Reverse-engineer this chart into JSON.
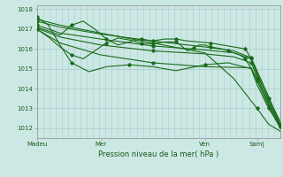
{
  "bg_color": "#cce8e4",
  "grid_color": "#aacccc",
  "line_color": "#1a6b1a",
  "marker_color": "#1a6b1a",
  "xlabel": "Pression niveau de la mer( hPa )",
  "xtick_labels": [
    "Madeu",
    "Mer",
    "Ven",
    "Sam|"
  ],
  "xtick_positions": [
    0,
    55,
    145,
    190
  ],
  "ylim": [
    1011.5,
    1018.2
  ],
  "yticks": [
    1012,
    1013,
    1014,
    1015,
    1016,
    1017,
    1018
  ],
  "figsize": [
    3.2,
    2.0
  ],
  "dpi": 100,
  "series": [
    {
      "name": "s1_diagonal",
      "points": [
        [
          0,
          1017.5
        ],
        [
          20,
          1017.2
        ],
        [
          55,
          1016.8
        ],
        [
          100,
          1016.3
        ],
        [
          145,
          1015.8
        ],
        [
          170,
          1014.5
        ],
        [
          190,
          1013.0
        ],
        [
          200,
          1012.2
        ],
        [
          210,
          1011.85
        ]
      ]
    },
    {
      "name": "s2_diagonal_steep",
      "points": [
        [
          0,
          1017.6
        ],
        [
          10,
          1017.2
        ],
        [
          20,
          1016.2
        ],
        [
          30,
          1015.3
        ],
        [
          45,
          1014.85
        ],
        [
          60,
          1015.1
        ],
        [
          80,
          1015.2
        ],
        [
          100,
          1015.1
        ],
        [
          120,
          1014.9
        ],
        [
          145,
          1015.2
        ],
        [
          165,
          1015.3
        ],
        [
          185,
          1015.0
        ],
        [
          190,
          1014.5
        ],
        [
          200,
          1013.3
        ],
        [
          210,
          1012.2
        ]
      ]
    },
    {
      "name": "s3_wavy_upper",
      "points": [
        [
          0,
          1017.1
        ],
        [
          10,
          1016.9
        ],
        [
          20,
          1016.7
        ],
        [
          30,
          1017.2
        ],
        [
          40,
          1017.4
        ],
        [
          50,
          1017.0
        ],
        [
          60,
          1016.5
        ],
        [
          70,
          1016.2
        ],
        [
          80,
          1016.35
        ],
        [
          90,
          1016.5
        ],
        [
          100,
          1016.4
        ],
        [
          110,
          1016.5
        ],
        [
          120,
          1016.5
        ],
        [
          130,
          1016.4
        ],
        [
          140,
          1016.35
        ],
        [
          150,
          1016.3
        ],
        [
          160,
          1016.2
        ],
        [
          170,
          1016.1
        ],
        [
          180,
          1016.0
        ],
        [
          185,
          1015.5
        ],
        [
          190,
          1014.7
        ],
        [
          200,
          1013.5
        ],
        [
          210,
          1012.35
        ]
      ]
    },
    {
      "name": "s4_wavy_mid",
      "points": [
        [
          0,
          1017.0
        ],
        [
          10,
          1016.6
        ],
        [
          20,
          1016.1
        ],
        [
          30,
          1015.7
        ],
        [
          40,
          1015.5
        ],
        [
          50,
          1015.9
        ],
        [
          60,
          1016.3
        ],
        [
          70,
          1016.55
        ],
        [
          80,
          1016.45
        ],
        [
          90,
          1016.3
        ],
        [
          100,
          1016.25
        ],
        [
          110,
          1016.35
        ],
        [
          120,
          1016.35
        ],
        [
          125,
          1016.15
        ],
        [
          130,
          1015.9
        ],
        [
          135,
          1016.05
        ],
        [
          140,
          1016.2
        ],
        [
          145,
          1016.2
        ],
        [
          150,
          1016.1
        ],
        [
          155,
          1016.05
        ],
        [
          160,
          1016.0
        ],
        [
          165,
          1015.9
        ],
        [
          170,
          1015.8
        ],
        [
          175,
          1015.7
        ],
        [
          180,
          1015.5
        ],
        [
          185,
          1015.0
        ],
        [
          190,
          1014.2
        ],
        [
          200,
          1013.0
        ],
        [
          210,
          1012.1
        ]
      ]
    },
    {
      "name": "s5_converging1",
      "points": [
        [
          0,
          1017.2
        ],
        [
          20,
          1016.8
        ],
        [
          55,
          1016.5
        ],
        [
          100,
          1016.15
        ],
        [
          145,
          1015.95
        ],
        [
          170,
          1015.8
        ],
        [
          185,
          1015.5
        ],
        [
          190,
          1014.8
        ],
        [
          200,
          1013.4
        ],
        [
          210,
          1012.15
        ]
      ]
    },
    {
      "name": "s6_converging2",
      "points": [
        [
          0,
          1017.05
        ],
        [
          20,
          1016.6
        ],
        [
          55,
          1016.2
        ],
        [
          100,
          1015.9
        ],
        [
          145,
          1015.75
        ],
        [
          170,
          1015.6
        ],
        [
          185,
          1015.3
        ],
        [
          190,
          1014.6
        ],
        [
          200,
          1013.2
        ],
        [
          210,
          1012.1
        ]
      ]
    },
    {
      "name": "s7_bottom_diagonal",
      "points": [
        [
          0,
          1017.4
        ],
        [
          20,
          1017.1
        ],
        [
          55,
          1016.75
        ],
        [
          100,
          1016.4
        ],
        [
          145,
          1016.1
        ],
        [
          170,
          1015.9
        ],
        [
          185,
          1015.55
        ],
        [
          190,
          1014.9
        ],
        [
          200,
          1013.6
        ],
        [
          210,
          1012.2
        ]
      ]
    },
    {
      "name": "s8_very_steep",
      "points": [
        [
          0,
          1017.0
        ],
        [
          20,
          1016.3
        ],
        [
          55,
          1015.7
        ],
        [
          100,
          1015.3
        ],
        [
          145,
          1015.1
        ],
        [
          185,
          1015.05
        ],
        [
          190,
          1014.4
        ],
        [
          200,
          1013.1
        ],
        [
          210,
          1012.0
        ]
      ]
    }
  ]
}
